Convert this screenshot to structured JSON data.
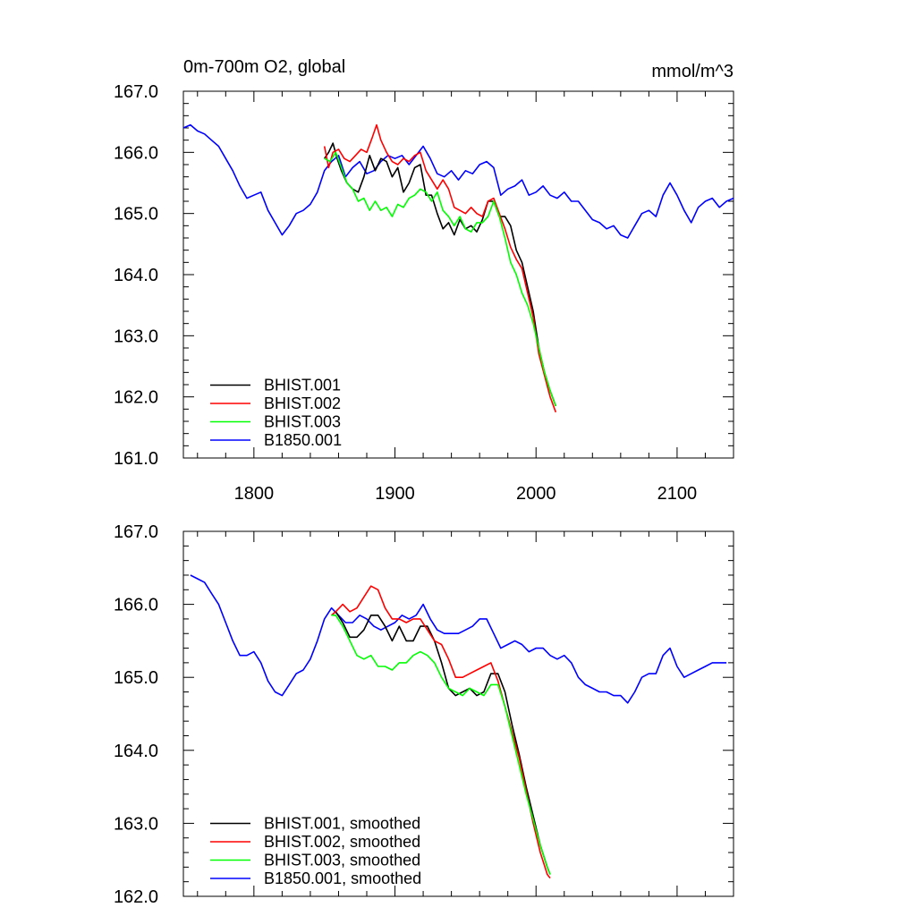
{
  "chart_data": [
    {
      "type": "line",
      "title": "0m-700m O2, global",
      "units": "mmol/m^3",
      "xlim": [
        1750,
        2140
      ],
      "ylim": [
        161.0,
        167.0
      ],
      "x_ticks": [
        "1800",
        "1900",
        "2000",
        "2100"
      ],
      "y_ticks": [
        "161.0",
        "162.0",
        "163.0",
        "164.0",
        "165.0",
        "166.0",
        "167.0"
      ],
      "grid": false,
      "legend_position": "lower-left",
      "series": [
        {
          "name": "BHIST.001",
          "color": "#000000",
          "x": [
            1850,
            1853,
            1856,
            1859,
            1862,
            1866,
            1870,
            1874,
            1878,
            1882,
            1886,
            1890,
            1894,
            1898,
            1902,
            1906,
            1910,
            1914,
            1918,
            1922,
            1926,
            1930,
            1934,
            1938,
            1942,
            1946,
            1950,
            1954,
            1958,
            1962,
            1966,
            1970,
            1974,
            1978,
            1982,
            1986,
            1990,
            1994,
            1998,
            2002,
            2006,
            2010,
            2014
          ],
          "y": [
            165.9,
            166.0,
            166.15,
            165.9,
            165.7,
            165.5,
            165.4,
            165.35,
            165.6,
            165.95,
            165.7,
            165.9,
            165.85,
            165.6,
            165.75,
            165.35,
            165.5,
            165.75,
            165.8,
            165.3,
            165.3,
            165.0,
            164.75,
            164.85,
            164.65,
            164.9,
            164.75,
            164.8,
            164.7,
            164.9,
            165.2,
            165.2,
            164.95,
            164.95,
            164.8,
            164.4,
            164.2,
            163.8,
            163.4,
            162.8,
            162.4,
            162.1,
            161.85
          ]
        },
        {
          "name": "BHIST.002",
          "color": "#ff0000",
          "x": [
            1850,
            1853,
            1856,
            1860,
            1864,
            1868,
            1872,
            1876,
            1880,
            1884,
            1887,
            1890,
            1894,
            1898,
            1902,
            1906,
            1910,
            1914,
            1918,
            1922,
            1926,
            1930,
            1934,
            1938,
            1942,
            1946,
            1950,
            1954,
            1958,
            1962,
            1966,
            1970,
            1974,
            1978,
            1982,
            1986,
            1990,
            1994,
            1998,
            2002,
            2006,
            2010,
            2014
          ],
          "y": [
            166.1,
            165.75,
            166.0,
            166.05,
            165.9,
            165.85,
            165.95,
            166.05,
            166.0,
            166.25,
            166.45,
            166.2,
            166.0,
            165.85,
            165.8,
            165.9,
            165.85,
            165.95,
            166.0,
            165.7,
            165.55,
            165.4,
            165.55,
            165.4,
            165.1,
            165.05,
            165.0,
            165.1,
            165.0,
            164.95,
            165.2,
            165.25,
            165.0,
            164.75,
            164.45,
            164.25,
            164.1,
            163.7,
            163.3,
            162.7,
            162.35,
            162.0,
            161.75
          ]
        },
        {
          "name": "BHIST.003",
          "color": "#00ff00",
          "x": [
            1850,
            1854,
            1858,
            1862,
            1866,
            1870,
            1874,
            1878,
            1882,
            1886,
            1890,
            1894,
            1898,
            1902,
            1906,
            1910,
            1914,
            1918,
            1922,
            1926,
            1930,
            1934,
            1938,
            1942,
            1946,
            1950,
            1954,
            1958,
            1962,
            1966,
            1970,
            1974,
            1978,
            1982,
            1986,
            1990,
            1994,
            1998,
            2002,
            2006,
            2010,
            2014
          ],
          "y": [
            165.9,
            165.85,
            166.0,
            165.75,
            165.5,
            165.4,
            165.2,
            165.25,
            165.05,
            165.2,
            165.05,
            165.1,
            164.95,
            165.15,
            165.1,
            165.25,
            165.3,
            165.4,
            165.35,
            165.2,
            165.35,
            165.05,
            164.95,
            164.8,
            164.95,
            164.75,
            164.7,
            164.85,
            164.85,
            164.95,
            165.2,
            164.95,
            164.6,
            164.2,
            164.0,
            163.7,
            163.5,
            163.2,
            162.8,
            162.4,
            162.1,
            161.85
          ]
        },
        {
          "name": "B1850.001",
          "color": "#0000ff",
          "x": [
            1750,
            1755,
            1760,
            1765,
            1770,
            1775,
            1780,
            1785,
            1790,
            1795,
            1800,
            1805,
            1810,
            1815,
            1820,
            1825,
            1830,
            1835,
            1840,
            1845,
            1850,
            1855,
            1860,
            1865,
            1870,
            1875,
            1880,
            1885,
            1890,
            1895,
            1900,
            1905,
            1910,
            1915,
            1920,
            1925,
            1930,
            1935,
            1940,
            1945,
            1950,
            1955,
            1960,
            1965,
            1970,
            1975,
            1980,
            1985,
            1990,
            1995,
            2000,
            2005,
            2010,
            2015,
            2020,
            2025,
            2030,
            2035,
            2040,
            2045,
            2050,
            2055,
            2060,
            2065,
            2070,
            2075,
            2080,
            2085,
            2090,
            2095,
            2100,
            2105,
            2110,
            2115,
            2120,
            2125,
            2130,
            2135,
            2140
          ],
          "y": [
            166.4,
            166.45,
            166.35,
            166.3,
            166.2,
            166.1,
            165.9,
            165.7,
            165.45,
            165.25,
            165.3,
            165.35,
            165.05,
            164.85,
            164.65,
            164.8,
            165.0,
            165.05,
            165.15,
            165.35,
            165.7,
            165.85,
            165.95,
            165.6,
            165.75,
            165.85,
            165.65,
            165.7,
            165.85,
            165.95,
            165.9,
            165.95,
            165.8,
            165.95,
            166.1,
            165.9,
            165.65,
            165.6,
            165.7,
            165.55,
            165.7,
            165.65,
            165.8,
            165.85,
            165.75,
            165.3,
            165.4,
            165.45,
            165.55,
            165.3,
            165.35,
            165.45,
            165.3,
            165.25,
            165.35,
            165.2,
            165.2,
            165.05,
            164.9,
            164.85,
            164.75,
            164.8,
            164.65,
            164.6,
            164.8,
            165.0,
            165.05,
            164.95,
            165.3,
            165.5,
            165.3,
            165.05,
            164.85,
            165.1,
            165.2,
            165.25,
            165.1,
            165.2,
            165.25
          ]
        }
      ]
    },
    {
      "type": "line",
      "title": "",
      "units": "",
      "xlim": [
        1750,
        2140
      ],
      "ylim": [
        162.0,
        167.0
      ],
      "x_ticks": [],
      "y_ticks": [
        "162.0",
        "163.0",
        "164.0",
        "165.0",
        "166.0",
        "167.0"
      ],
      "grid": false,
      "legend_position": "lower-left",
      "series": [
        {
          "name": "BHIST.001, smoothed",
          "color": "#000000",
          "x": [
            1855,
            1858,
            1863,
            1868,
            1873,
            1878,
            1883,
            1888,
            1893,
            1898,
            1903,
            1908,
            1913,
            1918,
            1923,
            1928,
            1933,
            1938,
            1943,
            1948,
            1953,
            1958,
            1963,
            1968,
            1973,
            1978,
            1983,
            1988,
            1993,
            1998,
            2003,
            2008,
            2010
          ],
          "y": [
            165.85,
            165.9,
            165.75,
            165.55,
            165.55,
            165.65,
            165.85,
            165.85,
            165.7,
            165.5,
            165.7,
            165.5,
            165.5,
            165.7,
            165.7,
            165.5,
            165.2,
            164.85,
            164.75,
            164.8,
            164.85,
            164.75,
            164.8,
            165.05,
            165.05,
            164.8,
            164.35,
            163.95,
            163.5,
            163.1,
            162.7,
            162.4,
            162.3
          ]
        },
        {
          "name": "BHIST.002, smoothed",
          "color": "#ff0000",
          "x": [
            1855,
            1858,
            1863,
            1868,
            1873,
            1878,
            1883,
            1888,
            1893,
            1898,
            1903,
            1908,
            1913,
            1918,
            1923,
            1928,
            1933,
            1938,
            1943,
            1948,
            1953,
            1958,
            1963,
            1968,
            1973,
            1978,
            1983,
            1988,
            1993,
            1998,
            2003,
            2008,
            2010
          ],
          "y": [
            165.85,
            165.9,
            166.0,
            165.9,
            165.95,
            166.1,
            166.25,
            166.2,
            165.95,
            165.8,
            165.8,
            165.75,
            165.8,
            165.8,
            165.65,
            165.5,
            165.45,
            165.25,
            165.0,
            165.0,
            165.05,
            165.1,
            165.15,
            165.2,
            164.95,
            164.6,
            164.25,
            163.9,
            163.45,
            163.0,
            162.6,
            162.3,
            162.25
          ]
        },
        {
          "name": "BHIST.003, smoothed",
          "color": "#00ff00",
          "x": [
            1855,
            1858,
            1863,
            1868,
            1873,
            1878,
            1883,
            1888,
            1893,
            1898,
            1903,
            1908,
            1913,
            1918,
            1923,
            1928,
            1933,
            1938,
            1943,
            1948,
            1953,
            1958,
            1963,
            1968,
            1973,
            1978,
            1983,
            1988,
            1993,
            1998,
            2003,
            2008,
            2010
          ],
          "y": [
            165.85,
            165.85,
            165.7,
            165.5,
            165.3,
            165.25,
            165.3,
            165.15,
            165.15,
            165.1,
            165.2,
            165.2,
            165.3,
            165.35,
            165.3,
            165.2,
            165.0,
            164.85,
            164.8,
            164.75,
            164.85,
            164.8,
            164.75,
            164.9,
            164.9,
            164.6,
            164.2,
            163.8,
            163.4,
            163.05,
            162.7,
            162.4,
            162.3
          ]
        },
        {
          "name": "B1850.001, smoothed",
          "color": "#0000ff",
          "x": [
            1755,
            1760,
            1765,
            1770,
            1775,
            1780,
            1785,
            1790,
            1795,
            1800,
            1805,
            1810,
            1815,
            1820,
            1825,
            1830,
            1835,
            1840,
            1845,
            1850,
            1855,
            1860,
            1865,
            1870,
            1875,
            1880,
            1885,
            1890,
            1895,
            1900,
            1905,
            1910,
            1915,
            1920,
            1925,
            1930,
            1935,
            1940,
            1945,
            1950,
            1955,
            1960,
            1965,
            1970,
            1975,
            1980,
            1985,
            1990,
            1995,
            2000,
            2005,
            2010,
            2015,
            2020,
            2025,
            2030,
            2035,
            2040,
            2045,
            2050,
            2055,
            2060,
            2065,
            2070,
            2075,
            2080,
            2085,
            2090,
            2095,
            2100,
            2105,
            2110,
            2115,
            2120,
            2125,
            2130,
            2135
          ],
          "y": [
            166.4,
            166.35,
            166.3,
            166.15,
            166.0,
            165.75,
            165.5,
            165.3,
            165.3,
            165.35,
            165.2,
            164.95,
            164.8,
            164.75,
            164.9,
            165.05,
            165.1,
            165.25,
            165.5,
            165.8,
            165.95,
            165.85,
            165.75,
            165.75,
            165.85,
            165.8,
            165.7,
            165.65,
            165.7,
            165.75,
            165.85,
            165.8,
            165.85,
            166.0,
            165.8,
            165.65,
            165.6,
            165.6,
            165.6,
            165.65,
            165.7,
            165.8,
            165.8,
            165.6,
            165.4,
            165.45,
            165.5,
            165.45,
            165.35,
            165.4,
            165.4,
            165.3,
            165.25,
            165.3,
            165.2,
            165.0,
            164.9,
            164.85,
            164.8,
            164.8,
            164.75,
            164.75,
            164.65,
            164.8,
            165.0,
            165.05,
            165.05,
            165.3,
            165.4,
            165.15,
            165.0,
            165.05,
            165.1,
            165.15,
            165.2,
            165.2,
            165.2
          ]
        }
      ]
    }
  ]
}
